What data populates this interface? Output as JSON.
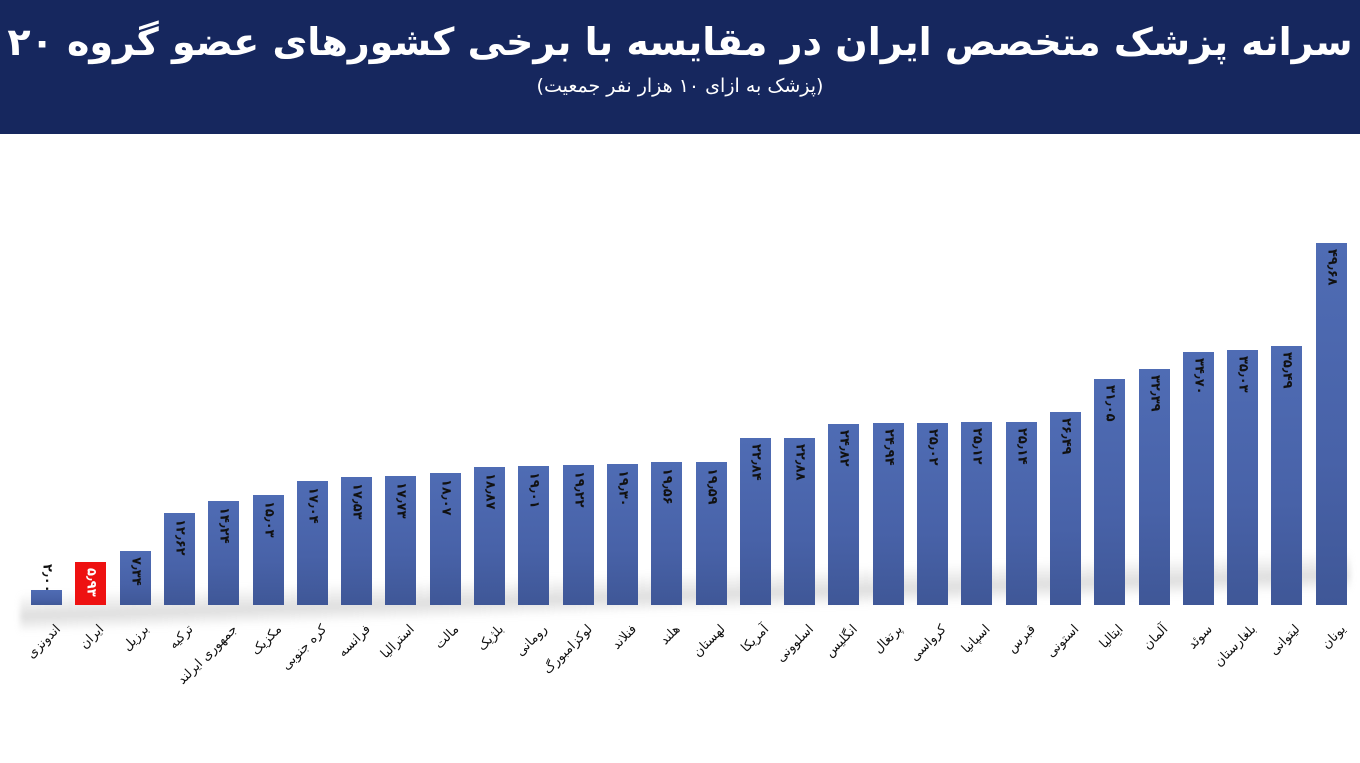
{
  "header": {
    "title": "سرانه پزشک متخصص ایران در مقایسه با برخی کشورهای عضو گروه ۲۰",
    "subtitle": "(پزشک به ازای ۱۰ هزار نفر جمعیت)",
    "background_color": "#16275e"
  },
  "chart_data": {
    "type": "bar",
    "title": "سرانه پزشک متخصص ایران در مقایسه با برخی کشورهای عضو گروه ۲۰",
    "subtitle": "(پزشک به ازای ۱۰ هزار نفر جمعیت)",
    "xlabel": "",
    "ylabel": "",
    "grid": false,
    "legend": null,
    "ylim": [
      0,
      50
    ],
    "bar_color": "#4862a8",
    "highlight_color": "#ee1111",
    "highlight_category": "ایران",
    "categories": [
      "اندونزی",
      "ایران",
      "برزیل",
      "ترکیه",
      "جمهوری ایرلند",
      "مکزیک",
      "کره جنوبی",
      "فرانسه",
      "استرالیا",
      "مالت",
      "بلژیک",
      "رومانی",
      "لوکزامبورگ",
      "فنلاند",
      "هلند",
      "لهستان",
      "آمریکا",
      "اسلوونی",
      "انگلیس",
      "پرتغال",
      "کرواسی",
      "اسپانیا",
      "قبرس",
      "استونی",
      "ایتالیا",
      "آلمان",
      "سوئد",
      "بلغارستان",
      "لیتوانی",
      "یونان"
    ],
    "values": [
      2.0,
      5.93,
      7.34,
      12.62,
      14.24,
      15.03,
      17.04,
      17.53,
      17.73,
      18.07,
      18.87,
      19.01,
      19.22,
      19.3,
      19.56,
      19.59,
      22.84,
      22.88,
      24.82,
      24.94,
      25.02,
      25.12,
      25.14,
      26.49,
      31.05,
      32.39,
      34.7,
      35.03,
      35.49,
      49.68
    ],
    "value_labels": [
      "۲٫۰۰",
      "۵٫۹۳",
      "۷٫۳۴",
      "۱۲٫۶۲",
      "۱۴٫۲۴",
      "۱۵٫۰۳",
      "۱۷٫۰۴",
      "۱۷٫۵۳",
      "۱۷٫۷۳",
      "۱۸٫۰۷",
      "۱۸٫۸۷",
      "۱۹٫۰۱",
      "۱۹٫۲۲",
      "۱۹٫۳۰",
      "۱۹٫۵۶",
      "۱۹٫۵۹",
      "۲۲٫۸۴",
      "۲۲٫۸۸",
      "۲۴٫۸۲",
      "۲۴٫۹۴",
      "۲۵٫۰۲",
      "۲۵٫۱۲",
      "۲۵٫۱۴",
      "۲۶٫۴۹",
      "۳۱٫۰۵",
      "۳۲٫۳۹",
      "۳۴٫۷۰",
      "۳۵٫۰۳",
      "۳۵٫۴۹",
      "۴۹٫۶۸"
    ]
  }
}
